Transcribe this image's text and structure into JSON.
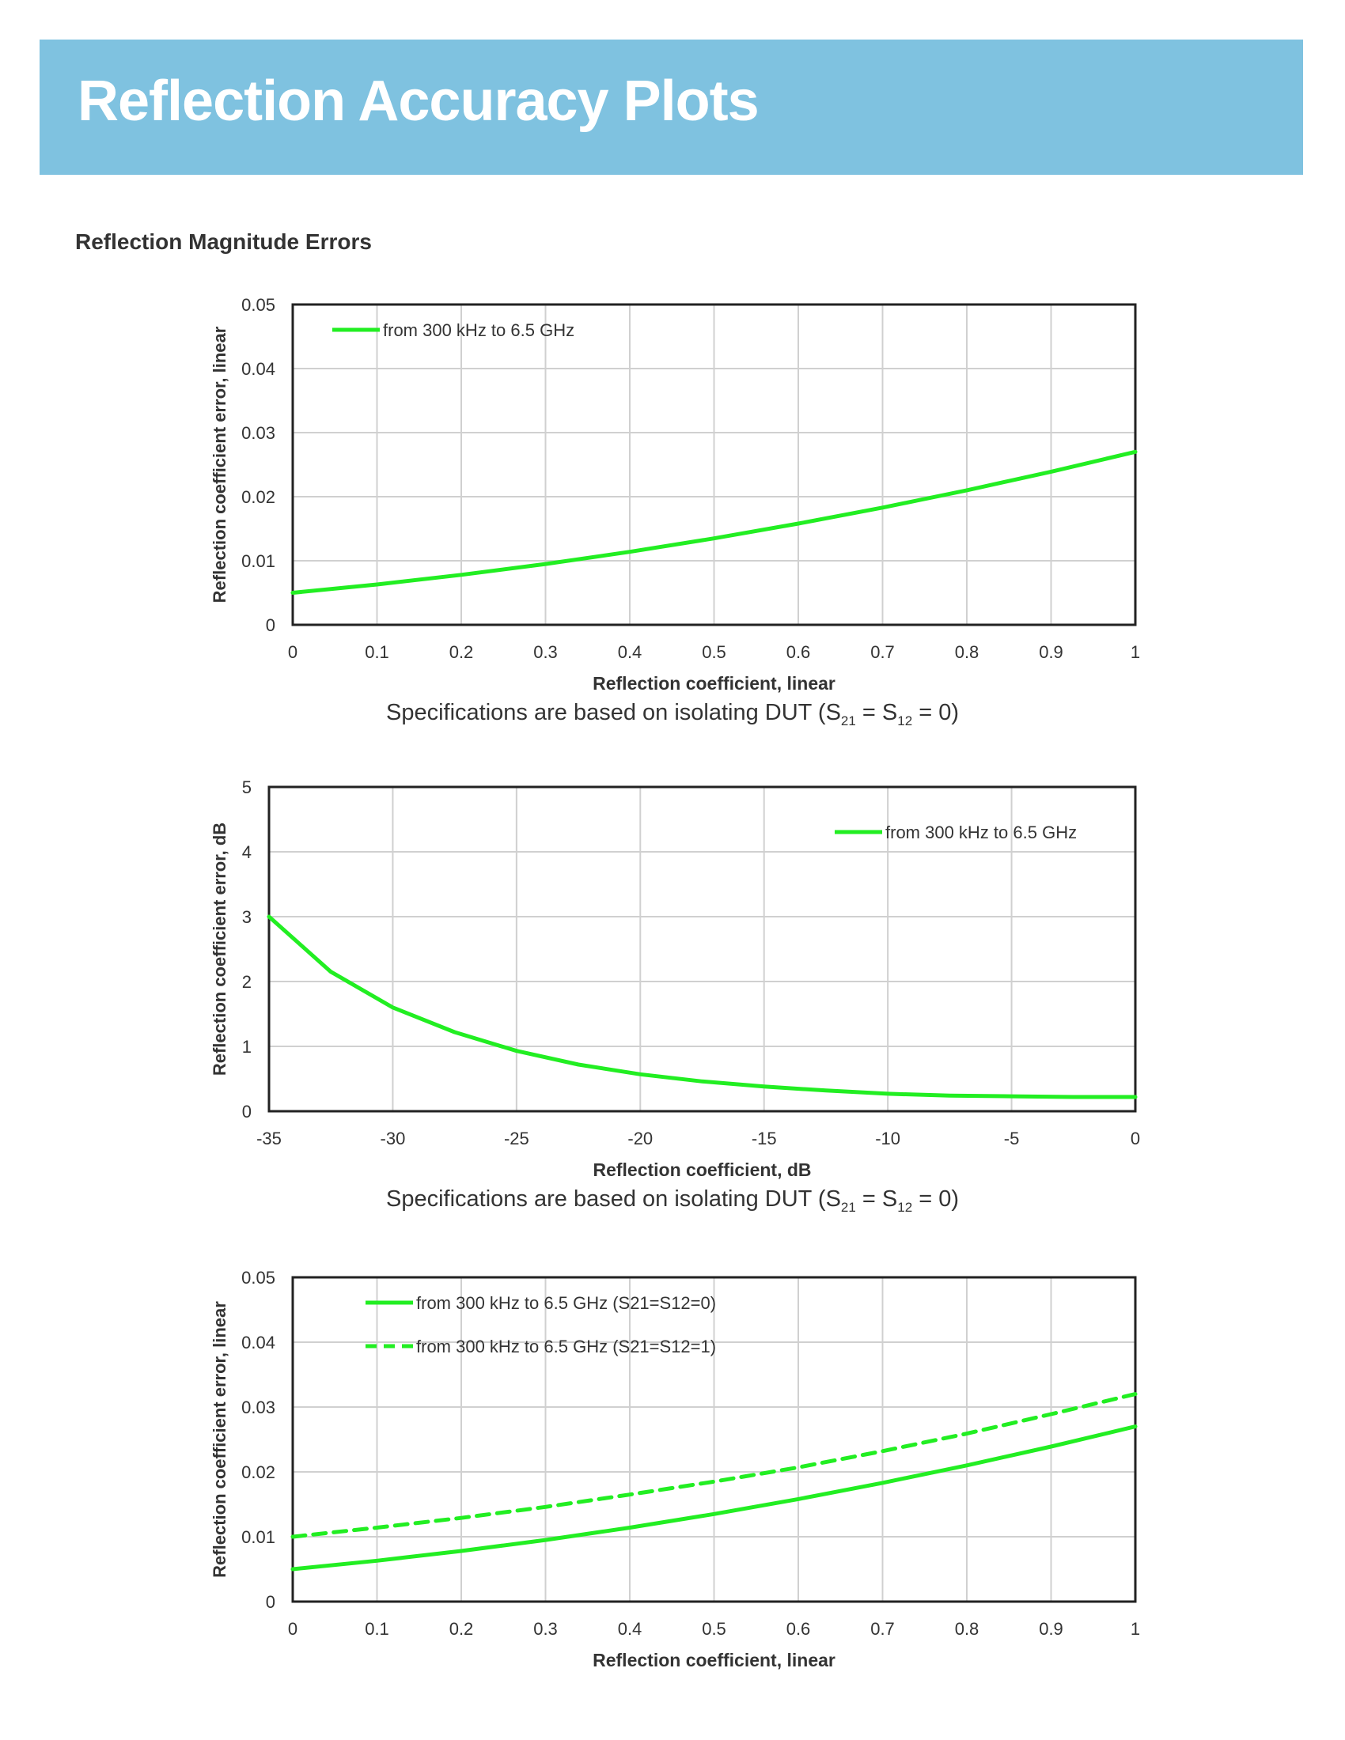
{
  "banner": {
    "title": "Reflection Accuracy Plots"
  },
  "section": {
    "title": "Reflection Magnitude Errors"
  },
  "colors": {
    "banner": "#7fc2e0",
    "series": "#22ee22",
    "grid": "#d0d0d0",
    "text": "#333333"
  },
  "captions": [
    {
      "prefix": "Specifications are based on isolating DUT (S",
      "sub1": "21",
      "mid": " = S",
      "sub2": "12",
      "suffix": " = 0)"
    },
    {
      "prefix": "Specifications are based on isolating DUT (S",
      "sub1": "21",
      "mid": " = S",
      "sub2": "12",
      "suffix": " = 0)"
    }
  ],
  "chart_data": [
    {
      "type": "line",
      "xlabel": "Reflection coefficient, linear",
      "ylabel": "Reflection coefficient error, linear",
      "xlim": [
        0,
        1
      ],
      "ylim": [
        0,
        0.05
      ],
      "xticks": [
        "0",
        "0.1",
        "0.2",
        "0.3",
        "0.4",
        "0.5",
        "0.6",
        "0.7",
        "0.8",
        "0.9",
        "1"
      ],
      "yticks": [
        "0",
        "0.01",
        "0.02",
        "0.03",
        "0.04",
        "0.05"
      ],
      "grid": true,
      "legend_position": "top-left",
      "series": [
        {
          "name": "from 300 kHz to 6.5 GHz",
          "style": "solid",
          "x": [
            0,
            0.1,
            0.2,
            0.3,
            0.4,
            0.5,
            0.6,
            0.7,
            0.8,
            0.9,
            1
          ],
          "y": [
            0.005,
            0.0063,
            0.0078,
            0.0095,
            0.0114,
            0.0135,
            0.0158,
            0.0183,
            0.021,
            0.0239,
            0.027
          ]
        }
      ]
    },
    {
      "type": "line",
      "xlabel": "Reflection coefficient, dB",
      "ylabel": "Reflection coefficient error, dB",
      "xlim": [
        -35,
        0
      ],
      "ylim": [
        0,
        5
      ],
      "xticks": [
        "-35",
        "-30",
        "-25",
        "-20",
        "-15",
        "-10",
        "-5",
        "0"
      ],
      "yticks": [
        "0",
        "1",
        "2",
        "3",
        "4",
        "5"
      ],
      "grid": true,
      "legend_position": "top-right",
      "series": [
        {
          "name": "from 300 kHz to 6.5 GHz",
          "style": "solid",
          "x": [
            -35,
            -32.5,
            -30,
            -27.5,
            -25,
            -22.5,
            -20,
            -17.5,
            -15,
            -12.5,
            -10,
            -7.5,
            -5,
            -2.5,
            0
          ],
          "y": [
            3.0,
            2.15,
            1.6,
            1.22,
            0.93,
            0.72,
            0.57,
            0.46,
            0.38,
            0.32,
            0.27,
            0.24,
            0.23,
            0.22,
            0.22
          ]
        }
      ]
    },
    {
      "type": "line",
      "xlabel": "Reflection coefficient, linear",
      "ylabel": "Reflection coefficient error, linear",
      "xlim": [
        0,
        1
      ],
      "ylim": [
        0,
        0.05
      ],
      "xticks": [
        "0",
        "0.1",
        "0.2",
        "0.3",
        "0.4",
        "0.5",
        "0.6",
        "0.7",
        "0.8",
        "0.9",
        "1"
      ],
      "yticks": [
        "0",
        "0.01",
        "0.02",
        "0.03",
        "0.04",
        "0.05"
      ],
      "grid": true,
      "legend_position": "top-left",
      "series": [
        {
          "name": "from 300 kHz to 6.5 GHz (S21=S12=0)",
          "style": "solid",
          "x": [
            0,
            0.1,
            0.2,
            0.3,
            0.4,
            0.5,
            0.6,
            0.7,
            0.8,
            0.9,
            1
          ],
          "y": [
            0.005,
            0.0063,
            0.0078,
            0.0095,
            0.0114,
            0.0135,
            0.0158,
            0.0183,
            0.021,
            0.0239,
            0.027
          ]
        },
        {
          "name": "from 300 kHz to 6.5 GHz (S21=S12=1)",
          "style": "dashed",
          "x": [
            0,
            0.1,
            0.2,
            0.3,
            0.4,
            0.5,
            0.6,
            0.7,
            0.8,
            0.9,
            1
          ],
          "y": [
            0.01,
            0.0114,
            0.0129,
            0.0146,
            0.0165,
            0.0185,
            0.0207,
            0.0232,
            0.0259,
            0.0289,
            0.032
          ]
        }
      ]
    }
  ]
}
